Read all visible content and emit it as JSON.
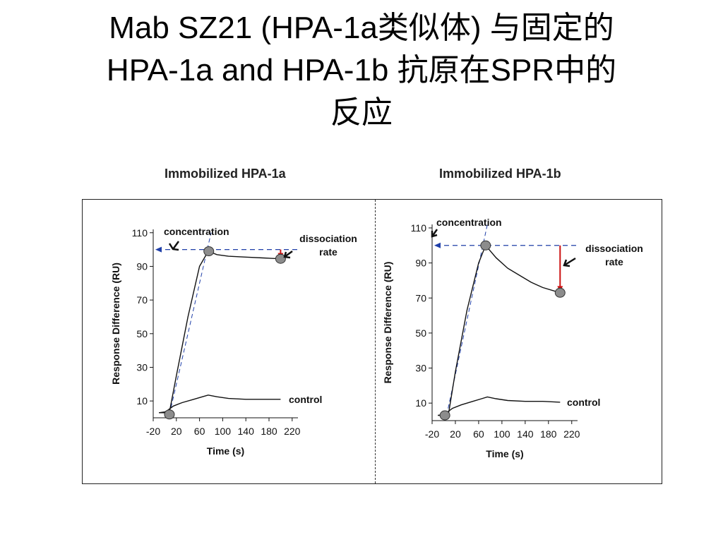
{
  "slide": {
    "title_line1": "Mab SZ21 (HPA-1a类似体) 与固定的",
    "title_line2": "HPA-1a and HPA-1b 抗原在SPR中的",
    "title_line3": "反应"
  },
  "chart_data": [
    {
      "type": "line",
      "title": "Immobilized HPA-1a",
      "xlabel": "Time (s)",
      "ylabel": "Response Difference (RU)",
      "xlim": [
        -20,
        230
      ],
      "ylim": [
        0,
        112
      ],
      "x_ticks": [
        -20,
        20,
        60,
        100,
        140,
        180,
        220
      ],
      "x_tick_labels": [
        "-20",
        "20",
        "60",
        "100",
        "140",
        "180",
        "220"
      ],
      "y_ticks": [
        10,
        30,
        50,
        70,
        90,
        110
      ],
      "y_tick_labels": [
        "10",
        "30",
        "50",
        "70",
        "90",
        "110"
      ],
      "series": [
        {
          "role": "sample",
          "x": [
            -10,
            0,
            8,
            20,
            40,
            60,
            75,
            90,
            110,
            140,
            170,
            200
          ],
          "y": [
            3,
            3,
            3.5,
            25,
            60,
            90,
            99,
            97,
            96,
            95.5,
            95,
            94.5
          ]
        },
        {
          "role": "control",
          "x": [
            -10,
            0,
            5,
            15,
            30,
            50,
            65,
            75,
            90,
            110,
            140,
            170,
            200
          ],
          "y": [
            3,
            3.5,
            4.5,
            7,
            9,
            11,
            12.5,
            13.5,
            12.5,
            11.5,
            11,
            11,
            11
          ]
        }
      ],
      "markers": [
        {
          "x": 8,
          "y": 2
        },
        {
          "x": 76,
          "y": 99
        },
        {
          "x": 200,
          "y": 94.5
        }
      ],
      "concentration_reference": {
        "y": 100
      },
      "concentration_slope_line": {
        "x": [
          8,
          80
        ],
        "y": [
          2,
          110
        ]
      },
      "dissociation_drop": {
        "x": 200,
        "from": 100,
        "to": 95
      },
      "annotations": {
        "concentration": "concentration",
        "dissociation": "dissociation rate",
        "control": "control"
      }
    },
    {
      "type": "line",
      "title": "Immobilized HPA-1b",
      "xlabel": "Time (s)",
      "ylabel": "Response Difference (RU)",
      "xlim": [
        -20,
        230
      ],
      "ylim": [
        0,
        112
      ],
      "x_ticks": [
        -20,
        20,
        60,
        100,
        140,
        180,
        220
      ],
      "x_tick_labels": [
        "-20",
        "20",
        "60",
        "100",
        "140",
        "180",
        "220"
      ],
      "y_ticks": [
        10,
        30,
        50,
        70,
        90,
        110
      ],
      "y_tick_labels": [
        "10",
        "30",
        "50",
        "70",
        "90",
        "110"
      ],
      "series": [
        {
          "role": "sample",
          "x": [
            -10,
            0,
            8,
            20,
            40,
            60,
            72,
            90,
            110,
            130,
            150,
            170,
            200
          ],
          "y": [
            3,
            3,
            3.5,
            28,
            63,
            90,
            100,
            93,
            87,
            83,
            79,
            76,
            73
          ]
        },
        {
          "role": "control",
          "x": [
            -10,
            0,
            5,
            15,
            30,
            50,
            65,
            75,
            90,
            110,
            140,
            170,
            200
          ],
          "y": [
            3,
            3.5,
            4.5,
            7,
            9,
            11,
            12.5,
            13.5,
            12.5,
            11.5,
            11,
            11,
            10.5
          ]
        }
      ],
      "markers": [
        {
          "x": 2,
          "y": 3
        },
        {
          "x": 72,
          "y": 100
        },
        {
          "x": 200,
          "y": 73
        }
      ],
      "concentration_reference": {
        "y": 100
      },
      "concentration_slope_line": {
        "x": [
          5,
          75
        ],
        "y": [
          3,
          112
        ]
      },
      "dissociation_drop": {
        "x": 200,
        "from": 100,
        "to": 74
      },
      "annotations": {
        "concentration": "concentration",
        "dissociation": "dissociation rate",
        "control": "control"
      }
    }
  ]
}
